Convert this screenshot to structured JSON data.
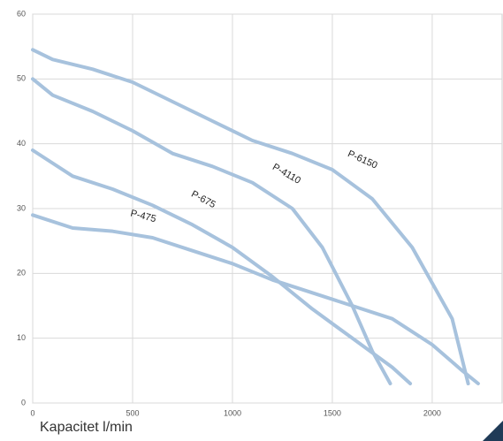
{
  "chart_data": {
    "type": "line",
    "x_label": "Kapacitet l/min",
    "xlim": [
      0,
      2350
    ],
    "xticks": [
      0,
      500,
      1000,
      1500,
      2000
    ],
    "ylim": [
      0,
      60
    ],
    "yticks": [
      0,
      10,
      20,
      30,
      40,
      50,
      60
    ],
    "grid": true,
    "series": [
      {
        "name": "P-6150",
        "color": "#a7c2dd",
        "x": [
          0,
          100,
          300,
          500,
          700,
          900,
          1100,
          1300,
          1500,
          1700,
          1900,
          2100,
          2180
        ],
        "values": [
          54.5,
          53,
          51.5,
          49.5,
          46.5,
          43.5,
          40.5,
          38.5,
          36,
          31.5,
          24,
          13,
          3
        ]
      },
      {
        "name": "P-4110",
        "color": "#a7c2dd",
        "x": [
          0,
          100,
          300,
          500,
          700,
          900,
          1100,
          1300,
          1450,
          1600,
          1700,
          1790
        ],
        "values": [
          50,
          47.5,
          45,
          42,
          38.5,
          36.5,
          34,
          30,
          24,
          15,
          8,
          3
        ]
      },
      {
        "name": "P-675",
        "color": "#a7c2dd",
        "x": [
          0,
          200,
          400,
          600,
          800,
          1000,
          1200,
          1400,
          1600,
          1800,
          1890
        ],
        "values": [
          39,
          35,
          33,
          30.5,
          27.5,
          24,
          19.5,
          14.5,
          10,
          5.5,
          3
        ]
      },
      {
        "name": "P-475",
        "color": "#a7c2dd",
        "x": [
          0,
          200,
          400,
          600,
          800,
          1000,
          1200,
          1400,
          1600,
          1800,
          2000,
          2150,
          2230
        ],
        "values": [
          29,
          27,
          26.5,
          25.5,
          23.5,
          21.5,
          19,
          17,
          15,
          13,
          9,
          5,
          3
        ]
      }
    ]
  }
}
